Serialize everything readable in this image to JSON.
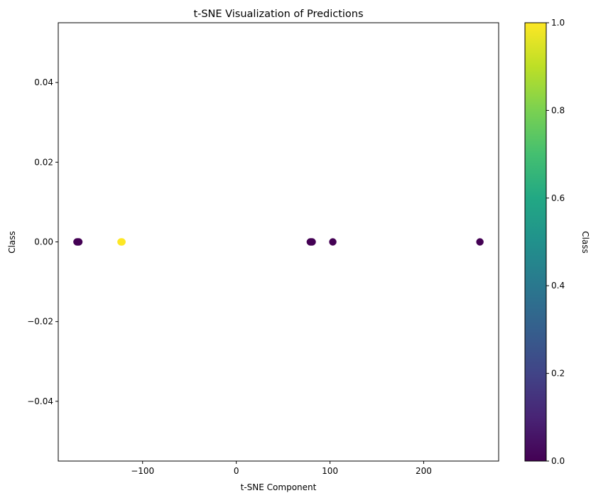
{
  "chart_data": {
    "type": "scatter",
    "title": "t-SNE Visualization of Predictions",
    "xlabel": "t-SNE Component",
    "ylabel": "Class",
    "xlim": [
      -190,
      280
    ],
    "ylim": [
      -0.055,
      0.055
    ],
    "x_ticks": [
      -100,
      0,
      100,
      200
    ],
    "x_tick_labels": [
      "−100",
      "0",
      "100",
      "200"
    ],
    "y_ticks": [
      -0.04,
      -0.02,
      0.0,
      0.02,
      0.04
    ],
    "y_tick_labels": [
      "−0.04",
      "−0.02",
      "0.00",
      "0.02",
      "0.04"
    ],
    "grid": false,
    "colorbar": {
      "label": "Class",
      "colormap": "viridis",
      "range": [
        0,
        1
      ],
      "ticks": [
        0.0,
        0.2,
        0.4,
        0.6,
        0.8,
        1.0
      ],
      "tick_labels": [
        "0.0",
        "0.2",
        "0.4",
        "0.6",
        "0.8",
        "1.0"
      ]
    },
    "points": [
      {
        "x": -170,
        "y": 0,
        "class": 0
      },
      {
        "x": -169,
        "y": 0,
        "class": 0
      },
      {
        "x": -168,
        "y": 0,
        "class": 0
      },
      {
        "x": -123,
        "y": 0,
        "class": 1
      },
      {
        "x": -122,
        "y": 0,
        "class": 1
      },
      {
        "x": 79,
        "y": 0,
        "class": 0
      },
      {
        "x": 80,
        "y": 0,
        "class": 0
      },
      {
        "x": 81,
        "y": 0,
        "class": 0
      },
      {
        "x": 103,
        "y": 0,
        "class": 0
      },
      {
        "x": 260,
        "y": 0,
        "class": 0
      }
    ],
    "colors": {
      "class_0": "#440154",
      "class_1": "#fde725"
    }
  }
}
